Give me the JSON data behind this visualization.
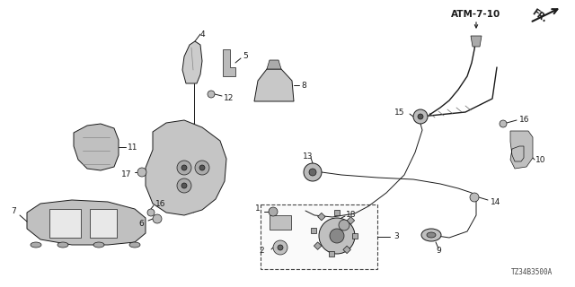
{
  "background_color": "#ffffff",
  "fig_width": 6.4,
  "fig_height": 3.2,
  "dpi": 100,
  "atm_label": "ATM-7-10",
  "fr_label": "FR.",
  "part_number": "TZ34B3500A",
  "label_fontsize": 6.5,
  "atm_fontsize": 7.5,
  "partnum_fontsize": 5.5,
  "line_color": "#1a1a1a",
  "gray_fill": "#d0d0d0",
  "light_fill": "#e8e8e8",
  "dark_fill": "#555555"
}
